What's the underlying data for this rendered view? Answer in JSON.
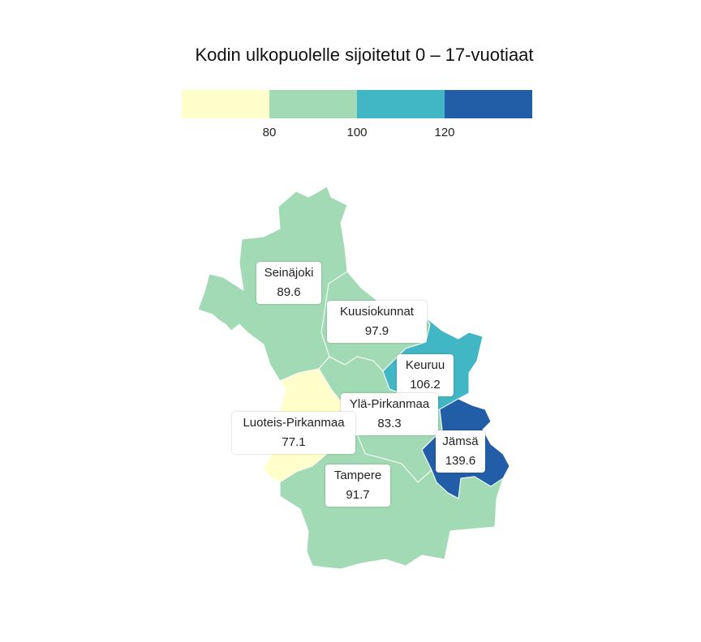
{
  "title": "Kodin ulkopuolelle sijoitetut 0 – 17-vuotiaat",
  "legend": {
    "colors": [
      "#ffffcc",
      "#a1dab4",
      "#41b6c4",
      "#225ea8"
    ],
    "ticks": [
      "80",
      "100",
      "120"
    ]
  },
  "regions": [
    {
      "name": "Seinäjoki",
      "value": "89.6",
      "color": "#a1dab4"
    },
    {
      "name": "Kuusiokunnat",
      "value": "97.9",
      "color": "#a1dab4"
    },
    {
      "name": "Keuruu",
      "value": "106.2",
      "color": "#41b6c4"
    },
    {
      "name": "Ylä-Pirkanmaa",
      "value": "83.3",
      "color": "#a1dab4"
    },
    {
      "name": "Jämsä",
      "value": "139.6",
      "color": "#225ea8"
    },
    {
      "name": "Luoteis-Pirkanmaa",
      "value": "77.1",
      "color": "#ffffcc"
    },
    {
      "name": "Tampere",
      "value": "91.7",
      "color": "#a1dab4"
    }
  ]
}
